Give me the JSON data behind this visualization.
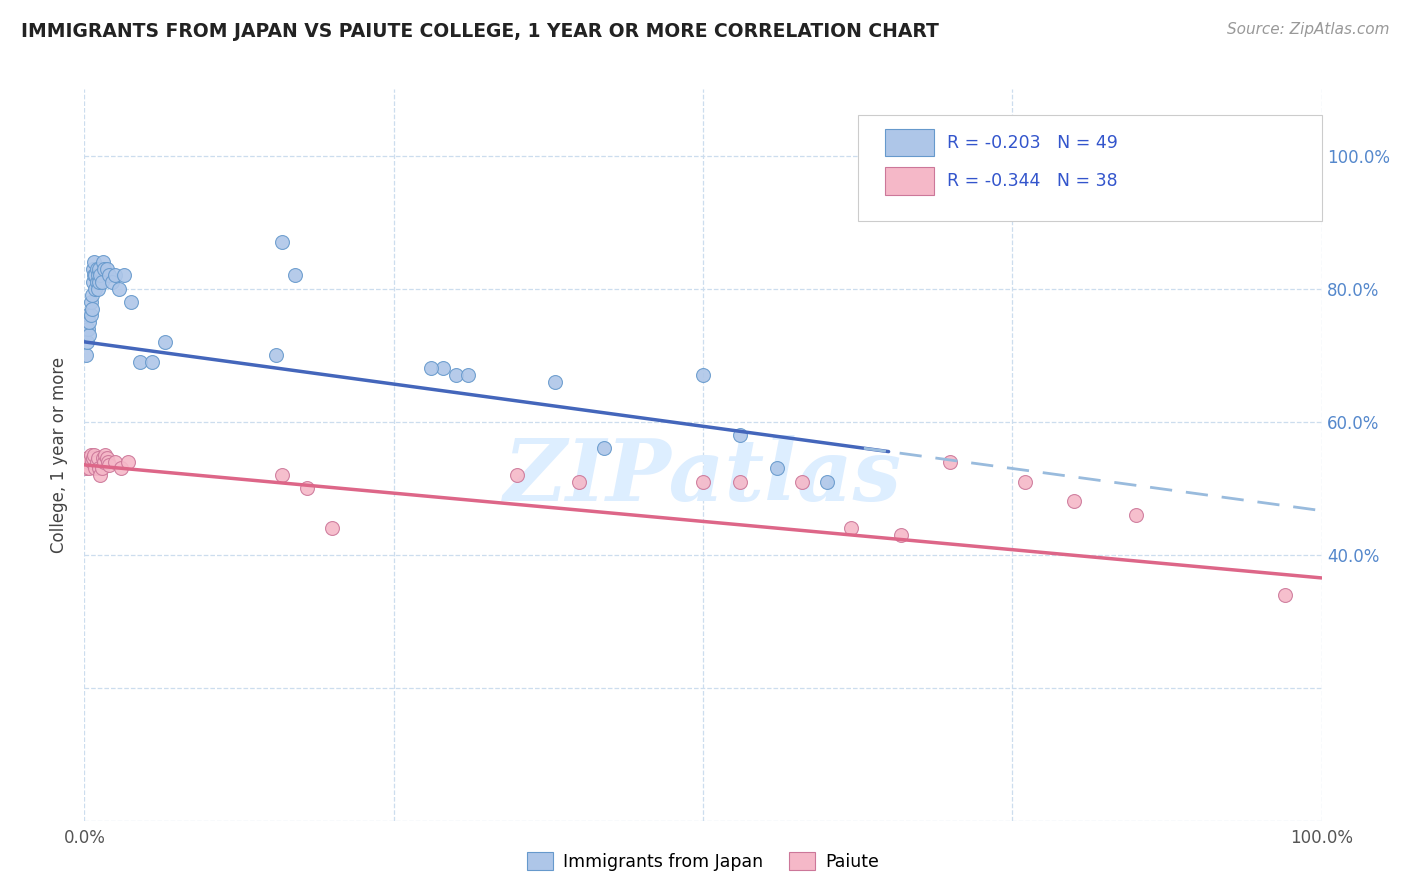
{
  "title": "IMMIGRANTS FROM JAPAN VS PAIUTE COLLEGE, 1 YEAR OR MORE CORRELATION CHART",
  "source": "Source: ZipAtlas.com",
  "ylabel": "College, 1 year or more",
  "legend_label1": "Immigrants from Japan",
  "legend_label2": "Paiute",
  "R1": "-0.203",
  "N1": "49",
  "R2": "-0.344",
  "N2": "38",
  "color_blue_fill": "#aec6e8",
  "color_blue_edge": "#6699cc",
  "color_blue_line": "#4466bb",
  "color_pink_fill": "#f5b8c8",
  "color_pink_edge": "#cc7799",
  "color_pink_line": "#dd6688",
  "color_dashed": "#99bbdd",
  "color_watermark": "#ddeeff",
  "watermark_text": "ZIPatlas",
  "background": "#ffffff",
  "grid_color": "#ccddee",
  "blue_x": [
    0.001,
    0.002,
    0.003,
    0.003,
    0.004,
    0.004,
    0.005,
    0.005,
    0.006,
    0.006,
    0.007,
    0.007,
    0.008,
    0.008,
    0.009,
    0.009,
    0.01,
    0.01,
    0.011,
    0.011,
    0.012,
    0.012,
    0.013,
    0.014,
    0.015,
    0.016,
    0.018,
    0.02,
    0.022,
    0.025,
    0.028,
    0.032,
    0.038,
    0.045,
    0.055,
    0.065,
    0.16,
    0.17,
    0.29,
    0.3,
    0.38,
    0.42,
    0.5,
    0.53,
    0.56,
    0.6,
    0.155,
    0.28,
    0.31
  ],
  "blue_y": [
    0.7,
    0.72,
    0.74,
    0.76,
    0.73,
    0.75,
    0.76,
    0.78,
    0.77,
    0.79,
    0.81,
    0.83,
    0.82,
    0.84,
    0.8,
    0.82,
    0.81,
    0.83,
    0.8,
    0.82,
    0.81,
    0.83,
    0.82,
    0.81,
    0.84,
    0.83,
    0.83,
    0.82,
    0.81,
    0.82,
    0.8,
    0.82,
    0.78,
    0.69,
    0.69,
    0.72,
    0.87,
    0.82,
    0.68,
    0.67,
    0.66,
    0.56,
    0.67,
    0.58,
    0.53,
    0.51,
    0.7,
    0.68,
    0.67
  ],
  "pink_x": [
    0.001,
    0.002,
    0.003,
    0.004,
    0.005,
    0.006,
    0.007,
    0.008,
    0.009,
    0.01,
    0.011,
    0.012,
    0.013,
    0.014,
    0.015,
    0.016,
    0.017,
    0.018,
    0.019,
    0.02,
    0.025,
    0.03,
    0.035,
    0.16,
    0.18,
    0.2,
    0.35,
    0.4,
    0.5,
    0.53,
    0.58,
    0.62,
    0.66,
    0.7,
    0.76,
    0.8,
    0.85,
    0.97
  ],
  "pink_y": [
    0.53,
    0.545,
    0.54,
    0.53,
    0.55,
    0.54,
    0.545,
    0.55,
    0.53,
    0.54,
    0.545,
    0.53,
    0.52,
    0.53,
    0.545,
    0.54,
    0.55,
    0.545,
    0.54,
    0.535,
    0.54,
    0.53,
    0.54,
    0.52,
    0.5,
    0.44,
    0.52,
    0.51,
    0.51,
    0.51,
    0.51,
    0.44,
    0.43,
    0.54,
    0.51,
    0.48,
    0.46,
    0.34
  ]
}
